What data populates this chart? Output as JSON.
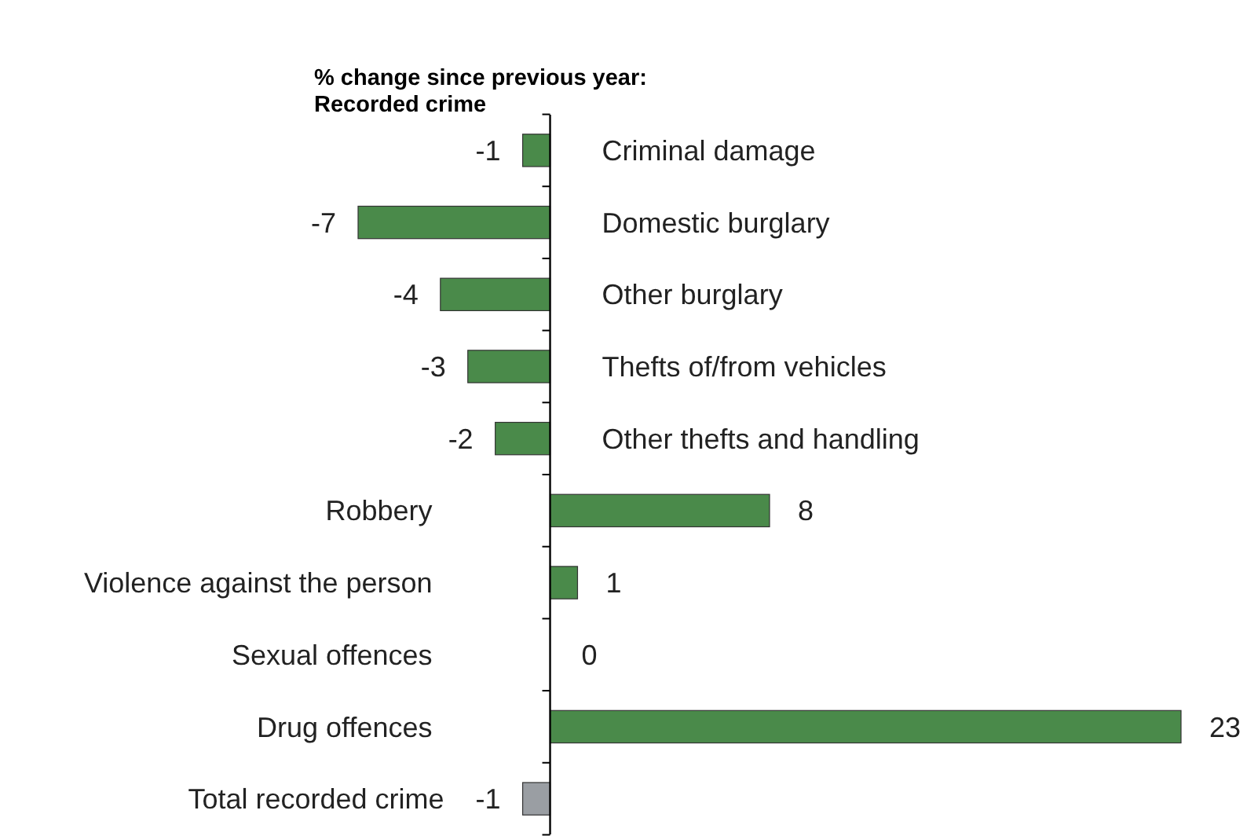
{
  "chart_data": {
    "type": "bar",
    "orientation": "horizontal",
    "title": "% change since previous year:\nRecorded crime",
    "categories": [
      "Criminal damage",
      "Domestic burglary",
      "Other burglary",
      "Thefts of/from vehicles",
      "Other thefts and handling",
      "Robbery",
      "Violence against the person",
      "Sexual offences",
      "Drug offences",
      "Total recorded crime"
    ],
    "values": [
      -1,
      -7,
      -4,
      -3,
      -2,
      8,
      1,
      0,
      23,
      -1
    ],
    "colors": [
      "#4a8a4a",
      "#4a8a4a",
      "#4a8a4a",
      "#4a8a4a",
      "#4a8a4a",
      "#4a8a4a",
      "#4a8a4a",
      "#4a8a4a",
      "#4a8a4a",
      "#9a9ea3"
    ],
    "data_labels": true,
    "tick_labels": "y"
  }
}
